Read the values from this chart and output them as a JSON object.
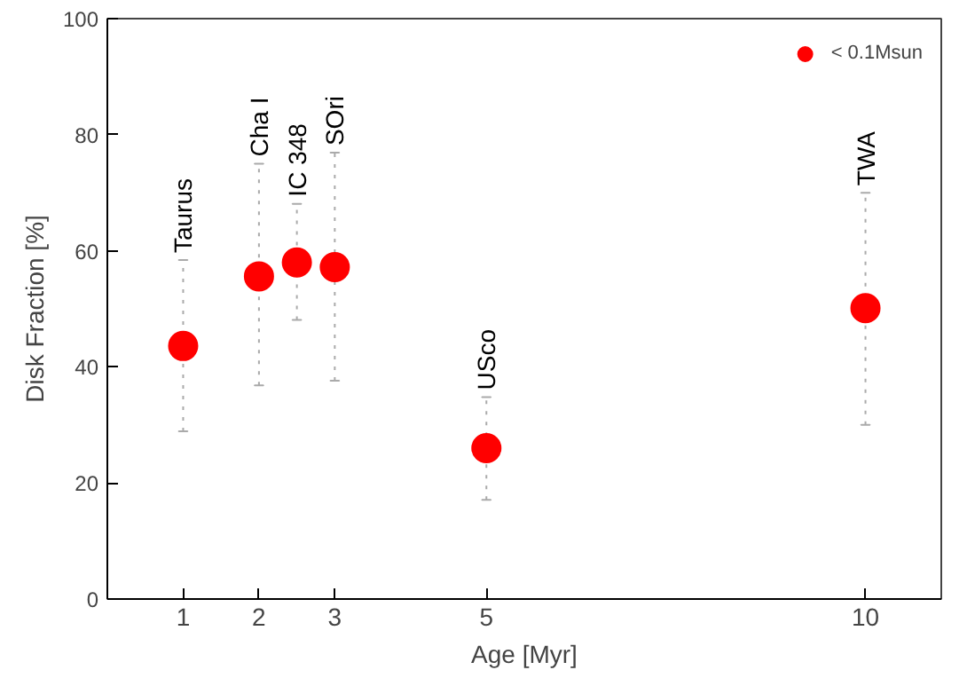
{
  "chart_data": {
    "type": "scatter",
    "xlabel": "Age [Myr]",
    "ylabel": "Disk Fraction [%]",
    "x": [
      1,
      2,
      2.5,
      3,
      5,
      10
    ],
    "series": [
      {
        "name": "< 0.1Msun",
        "color": "#ff0000",
        "values": [
          43.6,
          55.6,
          58.0,
          57.2,
          26.0,
          50.1
        ],
        "errors": [
          [
            28.9,
            58.4
          ],
          [
            36.8,
            75
          ],
          [
            48.1,
            68.1
          ],
          [
            37.6,
            76.9
          ],
          [
            17.1,
            34.8
          ],
          [
            30.0,
            70
          ]
        ]
      }
    ],
    "xlim": [
      0,
      11
    ],
    "ylim": [
      0,
      100
    ],
    "xticks": [
      1,
      2,
      3,
      5,
      10
    ],
    "yticks": [
      0,
      20,
      40,
      60,
      80,
      100
    ],
    "marker": "circle",
    "legend": "top right",
    "grid": false,
    "annotations": [
      {
        "text": "Taurus",
        "x": 1,
        "y": 58.4
      },
      {
        "text": "Cha I",
        "x": 2,
        "y": 75
      },
      {
        "text": "IC 348",
        "x": 2.5,
        "y": 68.1
      },
      {
        "text": "SOri",
        "x": 3,
        "y": 76.9
      },
      {
        "text": "USco",
        "x": 5,
        "y": 34.8
      },
      {
        "text": "TWA",
        "x": 10,
        "y": 70
      }
    ]
  }
}
